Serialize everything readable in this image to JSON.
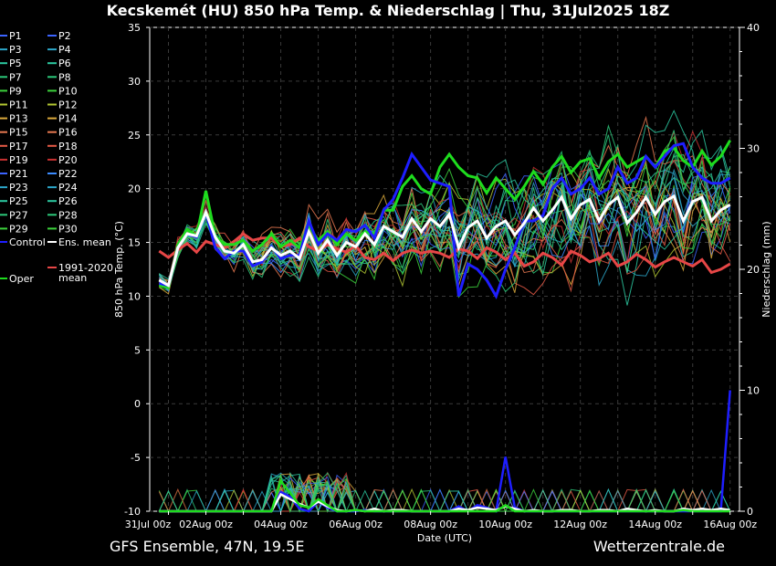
{
  "chart_data": {
    "type": "line",
    "title": "Kecskemét  (HU)  850 hPa Temp. & Niederschlag | Thu, 31Jul2025 18Z",
    "xlabel": "Date (UTC)",
    "ylabel": "850 hPa Temp. (°C)",
    "y2label": "Niederschlag (mm)",
    "ylim": [
      -10,
      35
    ],
    "y2lim": [
      0,
      40
    ],
    "yticks": [
      "35",
      "30",
      "25",
      "20",
      "15",
      "10",
      "5",
      "0",
      "-5",
      "-10"
    ],
    "y2ticks": [
      "40",
      "30",
      "20",
      "10",
      "0"
    ],
    "xticks": [
      "31Jul 00z",
      "02Aug 00z",
      "04Aug 00z",
      "06Aug 00z",
      "08Aug 00z",
      "10Aug 00z",
      "12Aug 00z",
      "14Aug 00z",
      "16Aug 00z"
    ],
    "grid": true,
    "time_step_hours": 6,
    "legend": [
      {
        "label": "P1",
        "color": "#3c64ff"
      },
      {
        "label": "P2",
        "color": "#3c64ff"
      },
      {
        "label": "P3",
        "color": "#2ca6c8"
      },
      {
        "label": "P4",
        "color": "#2ca6c8"
      },
      {
        "label": "P5",
        "color": "#2cc8a0"
      },
      {
        "label": "P6",
        "color": "#2cc8a0"
      },
      {
        "label": "P7",
        "color": "#2cc87a"
      },
      {
        "label": "P8",
        "color": "#2cc87a"
      },
      {
        "label": "P9",
        "color": "#3cd23c"
      },
      {
        "label": "P10",
        "color": "#3cd23c"
      },
      {
        "label": "P11",
        "color": "#b4c832"
      },
      {
        "label": "P12",
        "color": "#b4c832"
      },
      {
        "label": "P13",
        "color": "#dcaa3c"
      },
      {
        "label": "P14",
        "color": "#dcaa3c"
      },
      {
        "label": "P15",
        "color": "#e67850"
      },
      {
        "label": "P16",
        "color": "#e67850"
      },
      {
        "label": "P17",
        "color": "#e65a46"
      },
      {
        "label": "P18",
        "color": "#e65a46"
      },
      {
        "label": "P19",
        "color": "#c83232"
      },
      {
        "label": "P20",
        "color": "#c83232"
      },
      {
        "label": "P21",
        "color": "#3c64ff"
      },
      {
        "label": "P22",
        "color": "#3c8cff"
      },
      {
        "label": "P23",
        "color": "#2ca6c8"
      },
      {
        "label": "P24",
        "color": "#2ca6c8"
      },
      {
        "label": "P25",
        "color": "#2cc8a0"
      },
      {
        "label": "P26",
        "color": "#2cc8a0"
      },
      {
        "label": "P27",
        "color": "#2cc87a"
      },
      {
        "label": "P28",
        "color": "#2cc87a"
      },
      {
        "label": "P29",
        "color": "#3cd23c"
      },
      {
        "label": "P30",
        "color": "#3cd23c"
      },
      {
        "label": "Control",
        "color": "#1e1eff"
      },
      {
        "label": "Ens. mean",
        "color": "#ffffff"
      },
      {
        "label": "Oper",
        "color": "#1edc1e"
      },
      {
        "label": "1991-2020 mean",
        "color": "#e64646"
      }
    ],
    "series": [
      {
        "name": "Ens. mean",
        "color": "#ffffff",
        "values": [
          11.5,
          11.0,
          14.5,
          15.8,
          15.6,
          17.8,
          15.5,
          14.2,
          14.0,
          14.8,
          13.2,
          13.4,
          14.5,
          13.8,
          14.2,
          13.5,
          16.0,
          14.0,
          15.2,
          13.8,
          15.0,
          14.6,
          15.8,
          14.8,
          16.5,
          16.0,
          15.5,
          17.2,
          16.0,
          17.2,
          16.5,
          17.6,
          14.5,
          16.4,
          17.0,
          15.4,
          16.5,
          17.0,
          15.7,
          16.8,
          18.2,
          17.0,
          18.0,
          19.2,
          17.2,
          18.5,
          19.0,
          17.0,
          18.5,
          19.2,
          16.8,
          17.8,
          19.2,
          17.6,
          18.8,
          19.3,
          17.0,
          18.8,
          19.2,
          17.0,
          18.0,
          18.5
        ]
      },
      {
        "name": "Control",
        "color": "#1e1eff",
        "values": [
          11.2,
          11.0,
          14.5,
          15.8,
          15.5,
          17.8,
          14.5,
          13.5,
          14.2,
          14.2,
          12.8,
          13.2,
          14.6,
          13.5,
          13.8,
          13.8,
          17.0,
          14.8,
          15.8,
          15.2,
          16.2,
          16.0,
          16.6,
          15.4,
          18.0,
          19.0,
          21.0,
          23.2,
          22.0,
          20.8,
          20.5,
          20.2,
          10.0,
          13.0,
          12.5,
          11.5,
          10.0,
          12.5,
          14.5,
          17.0,
          17.0,
          17.5,
          20.0,
          21.0,
          19.5,
          20.0,
          21.0,
          19.5,
          20.0,
          22.0,
          20.5,
          21.0,
          23.0,
          22.0,
          23.0,
          24.0,
          24.2,
          22.0,
          21.0,
          20.5,
          20.5,
          21.0
        ]
      },
      {
        "name": "Oper",
        "color": "#1edc1e",
        "values": [
          11.0,
          10.8,
          14.8,
          16.2,
          15.6,
          19.8,
          15.6,
          14.8,
          14.8,
          15.2,
          14.2,
          14.8,
          15.8,
          14.6,
          15.2,
          14.5,
          16.5,
          15.2,
          16.0,
          14.8,
          15.8,
          15.2,
          16.0,
          15.8,
          18.0,
          18.0,
          20.2,
          21.2,
          20.0,
          19.5,
          22.0,
          23.2,
          22.0,
          21.2,
          21.0,
          19.6,
          21.0,
          20.0,
          19.0,
          20.2,
          21.6,
          20.4,
          22.0,
          23.0,
          21.5,
          22.5,
          22.8,
          21.0,
          22.5,
          23.2,
          22.0,
          22.5,
          23.0,
          22.0,
          23.5,
          23.8,
          22.6,
          22.0,
          23.5,
          22.2,
          23.0,
          24.5
        ]
      },
      {
        "name": "1991-2020 mean",
        "color": "#e64646",
        "values": [
          14.2,
          13.6,
          14.3,
          14.9,
          14.1,
          15.1,
          14.8,
          14.5,
          15.1,
          15.8,
          15.2,
          15.4,
          15.4,
          14.6,
          14.8,
          15.4,
          14.6,
          14.2,
          14.8,
          14.4,
          14.1,
          14.7,
          13.6,
          13.4,
          14.0,
          13.3,
          14.0,
          14.3,
          14.0,
          14.2,
          14.0,
          13.6,
          14.4,
          14.2,
          13.5,
          14.5,
          14.1,
          13.4,
          14.0,
          12.8,
          13.2,
          14.0,
          13.6,
          12.9,
          14.2,
          13.8,
          13.2,
          13.5,
          14.0,
          12.8,
          13.2,
          13.9,
          13.4,
          12.7,
          13.2,
          13.6,
          13.2,
          12.8,
          13.4,
          12.2,
          12.5,
          13.0
        ]
      }
    ],
    "precip_series": [
      {
        "name": "Control",
        "color": "#1e1eff",
        "values": [
          0,
          0,
          0,
          0,
          0,
          0,
          0,
          0,
          0,
          0,
          0,
          0,
          0,
          1.6,
          1.2,
          0.2,
          0,
          0.8,
          0.3,
          0,
          0,
          0,
          0.1,
          0,
          0,
          0,
          0,
          0,
          0,
          0,
          0,
          0,
          0.4,
          0,
          0.5,
          0.3,
          0,
          4.5,
          0.3,
          0,
          0,
          0,
          0,
          0,
          0,
          0,
          0,
          0,
          0,
          0,
          0,
          0,
          0,
          0,
          0,
          0,
          0,
          0,
          0,
          0,
          0,
          10.0
        ]
      },
      {
        "name": "Ens. mean",
        "color": "#ffffff",
        "values": [
          0,
          0,
          0,
          0,
          0,
          0,
          0,
          0,
          0,
          0,
          0,
          0,
          0,
          1.4,
          1.0,
          0.6,
          0.3,
          0.8,
          0.4,
          0.1,
          0,
          0.1,
          0,
          0.2,
          0,
          0.1,
          0.1,
          0,
          0,
          0,
          0,
          0,
          0.2,
          0.1,
          0.3,
          0.2,
          0.1,
          0.4,
          0.2,
          0,
          0.1,
          0,
          0,
          0.1,
          0.1,
          0,
          0,
          0.1,
          0.1,
          0,
          0.2,
          0.1,
          0,
          0.1,
          0,
          0,
          0.2,
          0.1,
          0.2,
          0.1,
          0.2,
          0.1
        ]
      },
      {
        "name": "Oper",
        "color": "#1edc1e",
        "values": [
          0,
          0,
          0,
          0,
          0,
          0,
          0,
          0,
          0,
          0,
          0,
          0,
          0,
          2.5,
          1.5,
          0.5,
          0.3,
          1.0,
          0.5,
          0,
          0,
          0.1,
          0,
          0,
          0,
          0,
          0,
          0,
          0,
          0,
          0,
          0,
          0,
          0,
          0,
          0,
          0,
          0.5,
          0,
          0,
          0,
          0,
          0,
          0,
          0,
          0,
          0,
          0,
          0,
          0,
          0,
          0,
          0,
          0,
          0,
          0,
          0.1,
          0,
          0,
          0,
          0,
          0
        ]
      }
    ]
  },
  "footer": {
    "source": "GFS Ensemble, 47N, 19.5E",
    "site": "Wetterzentrale.de"
  }
}
